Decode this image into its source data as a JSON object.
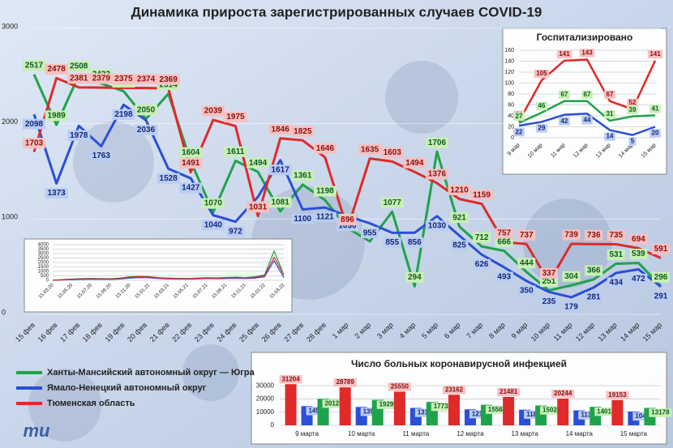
{
  "logo": "mu",
  "chart_data": [
    {
      "type": "line",
      "title": "Динамика прироста зарегистрированных случаев COVID-19",
      "categories": [
        "15 фев",
        "16 фев",
        "17 фев",
        "18 фев",
        "19 фев",
        "20 фев",
        "21 фев",
        "22 фев",
        "23 фев",
        "24 фев",
        "25 фев",
        "26 фев",
        "27 фев",
        "28 фев",
        "1 мар",
        "2 мар",
        "3 мар",
        "4 мар",
        "5 мар",
        "6 мар",
        "7 мар",
        "8 мар",
        "9 мар",
        "10 мар",
        "11 мар",
        "12 мар",
        "13 мар",
        "14 мар",
        "15 мар"
      ],
      "series": [
        {
          "name": "Ханты-Мансийский автономный округ — Югра",
          "color": "#1fa34a",
          "values": [
            2517,
            1989,
            2508,
            2422,
            2341,
            2050,
            2314,
            1604,
            1070,
            1611,
            1494,
            1081,
            1361,
            1198,
            906,
            765,
            1077,
            294,
            1706,
            921,
            712,
            666,
            444,
            251,
            304,
            366,
            531,
            539,
            296
          ]
        },
        {
          "name": "Ямало-Ненецкий автономный округ",
          "color": "#2b4fd6",
          "values": [
            2098,
            1373,
            1978,
            1763,
            2198,
            2036,
            1528,
            1427,
            1040,
            972,
            1232,
            1617,
            1100,
            1121,
            1030,
            955,
            855,
            856,
            1030,
            825,
            626,
            493,
            350,
            235,
            179,
            281,
            434,
            472,
            291
          ]
        },
        {
          "name": "Тюменская область",
          "color": "#e02a2a",
          "values": [
            1703,
            2478,
            2381,
            2379,
            2375,
            2374,
            2369,
            1491,
            2039,
            1975,
            1031,
            1846,
            1825,
            1646,
            896,
            1635,
            1603,
            1494,
            1376,
            1210,
            1159,
            757,
            737,
            337,
            739,
            736,
            735,
            694,
            591
          ]
        }
      ],
      "ylim": [
        0,
        3000
      ],
      "yticks": [
        0,
        1000,
        2000,
        3000
      ],
      "grid": true,
      "legend": "lower left"
    },
    {
      "type": "line",
      "title": "Госпитализировано",
      "categories": [
        "9 мар",
        "10 мар",
        "11 мар",
        "12 мар",
        "13 мар",
        "14 мар",
        "15 мар"
      ],
      "series": [
        {
          "color": "#e02a2a",
          "values": [
            30,
            105,
            141,
            143,
            67,
            52,
            141
          ]
        },
        {
          "color": "#1fa34a",
          "values": [
            27,
            46,
            67,
            67,
            31,
            39,
            41
          ]
        },
        {
          "color": "#2b4fd6",
          "values": [
            22,
            29,
            42,
            44,
            14,
            5,
            20
          ]
        }
      ],
      "ylim": [
        0,
        160
      ],
      "yticks": [
        0,
        20,
        40,
        60,
        80,
        100,
        120,
        140,
        160
      ],
      "grid": true
    },
    {
      "type": "line",
      "categories": [
        "15.03.20",
        null,
        "15.05.20",
        null,
        "15.07.20",
        null,
        "15.09.20",
        null,
        "15.11.20",
        null,
        "15.01.21",
        null,
        "15.03.21",
        null,
        "15.05.21",
        null,
        "15.07.21",
        null,
        "15.09.21",
        null,
        "15.11.21",
        null,
        "15.01.22",
        null,
        "15.03.22"
      ],
      "series": [
        {
          "color": "#1fa34a",
          "values": [
            10,
            80,
            150,
            200,
            220,
            200,
            180,
            250,
            400,
            450,
            420,
            300,
            250,
            220,
            200,
            250,
            300,
            280,
            320,
            350,
            300,
            400,
            600,
            3300,
            600
          ]
        },
        {
          "color": "#2b4fd6",
          "values": [
            5,
            40,
            80,
            100,
            120,
            110,
            100,
            150,
            250,
            300,
            280,
            200,
            160,
            140,
            130,
            160,
            200,
            180,
            200,
            220,
            200,
            250,
            400,
            2200,
            300
          ]
        },
        {
          "color": "#e02a2a",
          "values": [
            5,
            60,
            120,
            150,
            170,
            160,
            140,
            200,
            350,
            400,
            380,
            260,
            220,
            200,
            180,
            220,
            260,
            240,
            280,
            300,
            260,
            350,
            500,
            2600,
            600
          ]
        }
      ],
      "ylim": [
        0,
        4000
      ],
      "yticks": [
        0,
        500,
        1000,
        1500,
        2000,
        2500,
        3000,
        3500,
        4000
      ],
      "grid": true
    },
    {
      "type": "bar",
      "title": "Число больных коронавирусной инфекцией",
      "categories": [
        "9 марта",
        "10 марта",
        "11 марта",
        "12 марта",
        "13 марта",
        "14 марта",
        "15 марта"
      ],
      "series": [
        {
          "color": "#e02a2a",
          "values": [
            31204,
            28789,
            25550,
            23162,
            21481,
            20244,
            19153
          ]
        },
        {
          "color": "#2b4fd6",
          "values": [
            14545,
            13936,
            13199,
            12137,
            11818,
            11302,
            10479
          ]
        },
        {
          "color": "#1fa34a",
          "values": [
            20123,
            19298,
            17732,
            15568,
            15028,
            14012,
            13178
          ]
        }
      ],
      "ylim": [
        0,
        35000
      ],
      "yticks": [
        0,
        10000,
        20000,
        30000
      ],
      "grid": true
    }
  ]
}
